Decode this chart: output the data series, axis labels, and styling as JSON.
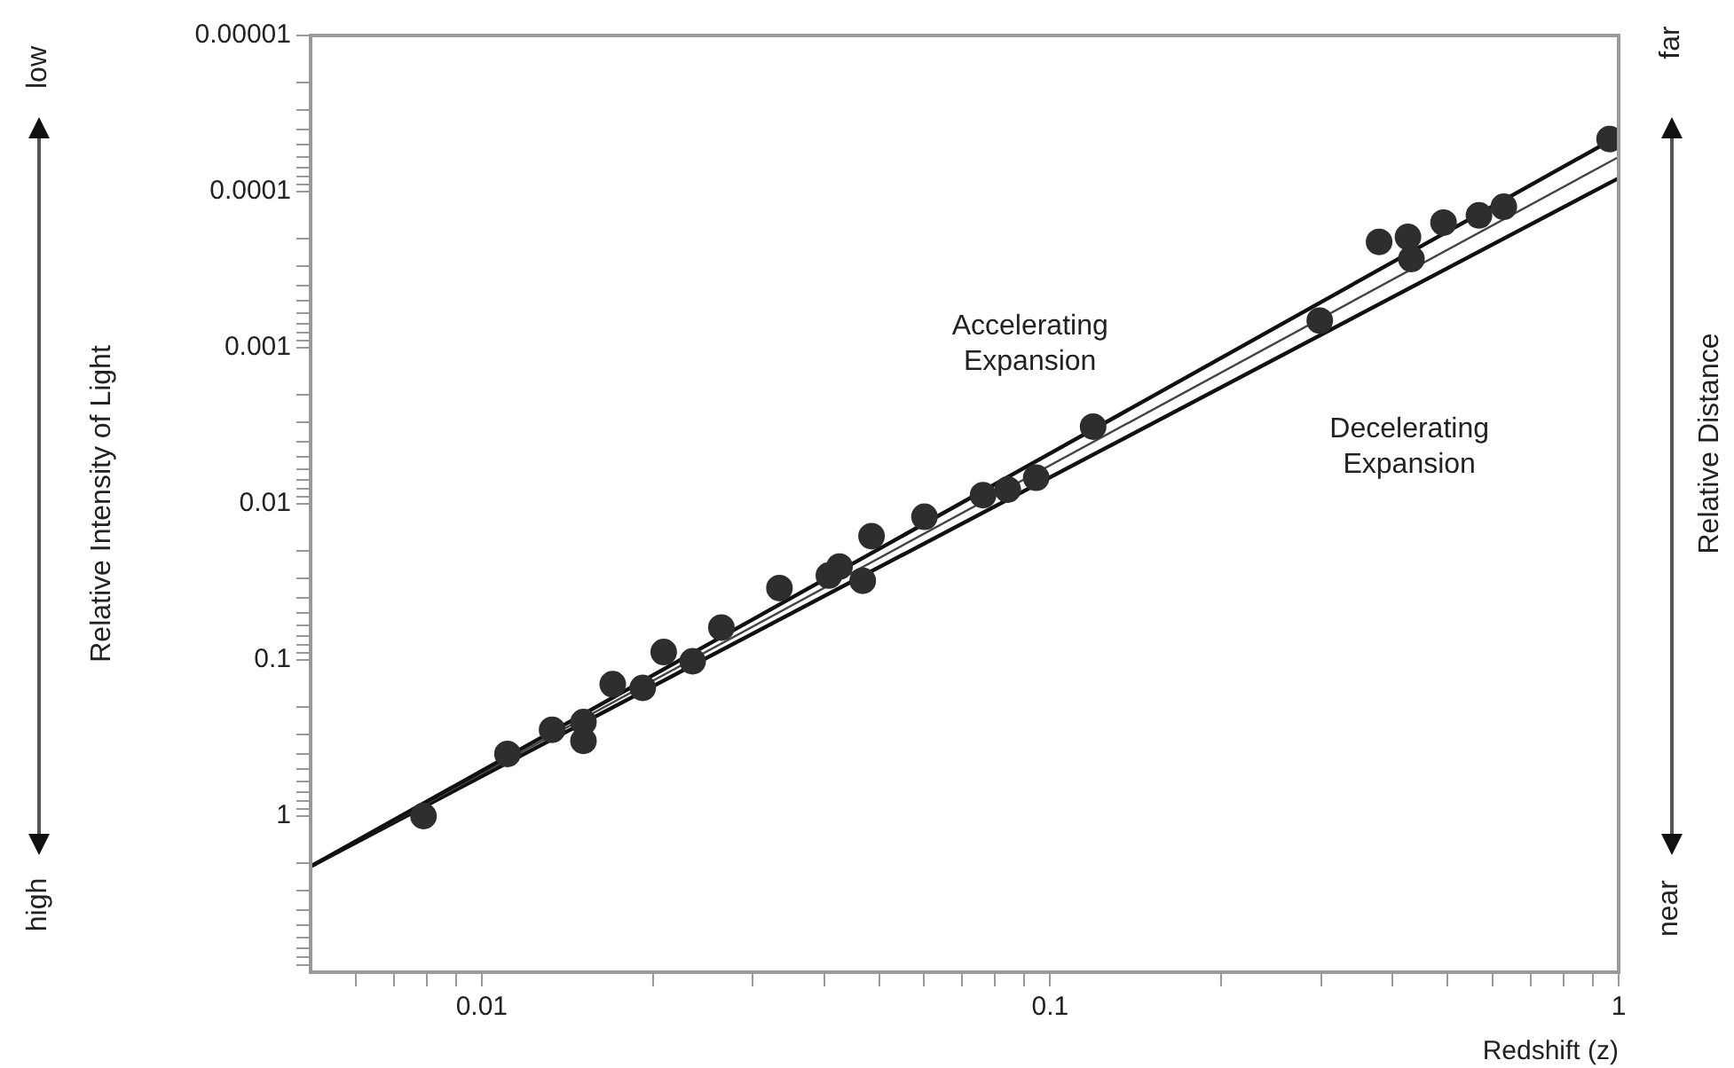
{
  "chart_data": {
    "type": "scatter",
    "xlabel": "Redshift (z)",
    "ylabel": "Relative Intensity of Light",
    "y2label": "Relative Distance",
    "log": "xy",
    "marker": "circle",
    "grid": false,
    "xlim": [
      0.005,
      1
    ],
    "ylim": [
      10,
      1e-05
    ],
    "xticks": [
      {
        "value": 0.006,
        "label": null
      },
      {
        "value": 0.007,
        "label": null
      },
      {
        "value": 0.008,
        "label": null
      },
      {
        "value": 0.009,
        "label": null
      },
      0.01,
      {
        "value": 0.02,
        "label": null
      },
      {
        "value": 0.03,
        "label": null
      },
      {
        "value": 0.04,
        "label": null
      },
      {
        "value": 0.05,
        "label": null
      },
      {
        "value": 0.06,
        "label": null
      },
      {
        "value": 0.07,
        "label": null
      },
      {
        "value": 0.08,
        "label": null
      },
      {
        "value": 0.09,
        "label": null
      },
      0.1,
      {
        "value": 0.2,
        "label": null
      },
      {
        "value": 0.3,
        "label": null
      },
      {
        "value": 0.4,
        "label": null
      },
      {
        "value": 0.5,
        "label": null
      },
      {
        "value": 0.6,
        "label": null
      },
      {
        "value": 0.7,
        "label": null
      },
      {
        "value": 0.8,
        "label": null
      },
      {
        "value": 0.9,
        "label": null
      },
      1
    ],
    "yticks": [
      {
        "value": 1e-05,
        "label": "0.00001"
      },
      {
        "value": 2e-05,
        "label": null
      },
      {
        "value": 3e-05,
        "label": null
      },
      {
        "value": 4e-05,
        "label": null
      },
      {
        "value": 5e-05,
        "label": null
      },
      {
        "value": 6e-05,
        "label": null
      },
      {
        "value": 7e-05,
        "label": null
      },
      {
        "value": 8e-05,
        "label": null
      },
      {
        "value": 9e-05,
        "label": null
      },
      0.0001,
      {
        "value": 0.0002,
        "label": null
      },
      {
        "value": 0.0003,
        "label": null
      },
      {
        "value": 0.0004,
        "label": null
      },
      {
        "value": 0.0005,
        "label": null
      },
      {
        "value": 0.0006,
        "label": null
      },
      {
        "value": 0.0007,
        "label": null
      },
      {
        "value": 0.0008,
        "label": null
      },
      {
        "value": 0.0009,
        "label": null
      },
      0.001,
      {
        "value": 0.002,
        "label": null
      },
      {
        "value": 0.003,
        "label": null
      },
      {
        "value": 0.004,
        "label": null
      },
      {
        "value": 0.005,
        "label": null
      },
      {
        "value": 0.006,
        "label": null
      },
      {
        "value": 0.007,
        "label": null
      },
      {
        "value": 0.008,
        "label": null
      },
      {
        "value": 0.009,
        "label": null
      },
      0.01,
      {
        "value": 0.02,
        "label": null
      },
      {
        "value": 0.03,
        "label": null
      },
      {
        "value": 0.04,
        "label": null
      },
      {
        "value": 0.05,
        "label": null
      },
      {
        "value": 0.06,
        "label": null
      },
      {
        "value": 0.07,
        "label": null
      },
      {
        "value": 0.08,
        "label": null
      },
      {
        "value": 0.09,
        "label": null
      },
      0.1,
      {
        "value": 0.2,
        "label": null
      },
      {
        "value": 0.3,
        "label": null
      },
      {
        "value": 0.4,
        "label": null
      },
      {
        "value": 0.5,
        "label": null
      },
      {
        "value": 0.6,
        "label": null
      },
      {
        "value": 0.7,
        "label": null
      },
      {
        "value": 0.8,
        "label": null
      },
      {
        "value": 0.9,
        "label": null
      },
      1,
      {
        "value": 2,
        "label": null
      },
      {
        "value": 3,
        "label": null
      },
      {
        "value": 4,
        "label": null
      },
      {
        "value": 5,
        "label": null
      },
      {
        "value": 6,
        "label": null
      },
      {
        "value": 7,
        "label": null
      },
      {
        "value": 8,
        "label": null
      },
      {
        "value": 9,
        "label": null
      }
    ],
    "series": [
      {
        "color": "#2e2e2e",
        "x": [
          0.0079,
          0.0111,
          0.0133,
          0.0151,
          0.0151,
          0.017,
          0.0192,
          0.0209,
          0.0235,
          0.0264,
          0.0334,
          0.0408,
          0.0426,
          0.0468,
          0.0485,
          0.0601,
          0.0762,
          0.0842,
          0.0945,
          0.119,
          0.298,
          0.379,
          0.426,
          0.432,
          0.492,
          0.568,
          0.628,
          0.964
        ],
        "values": [
          1.0,
          0.4,
          0.28,
          0.25,
          0.33,
          0.143,
          0.151,
          0.089,
          0.102,
          0.062,
          0.0346,
          0.0288,
          0.0252,
          0.0311,
          0.0161,
          0.0121,
          0.0088,
          0.0081,
          0.0068,
          0.0032,
          0.00067,
          0.00021,
          0.000195,
          0.00027,
          0.000158,
          0.000142,
          0.000125,
          4.6e-05
        ]
      },
      {
        "type": "line",
        "marker": "none",
        "color": "#111111",
        "x": [
          0.005,
          1
        ],
        "values": [
          2.1,
          4.4e-05
        ]
      },
      {
        "type": "line",
        "marker": "none",
        "color": "#444444",
        "x": [
          0.005,
          1
        ],
        "values": [
          2.1,
          6e-05
        ]
      },
      {
        "type": "line",
        "marker": "none",
        "color": "#111111",
        "x": [
          0.005,
          1
        ],
        "values": [
          2.1,
          8.2e-05
        ]
      }
    ],
    "annotations": [
      "low",
      "high",
      "far",
      "near",
      "Accelerating Expansion",
      "Decelerating Expansion"
    ]
  }
}
